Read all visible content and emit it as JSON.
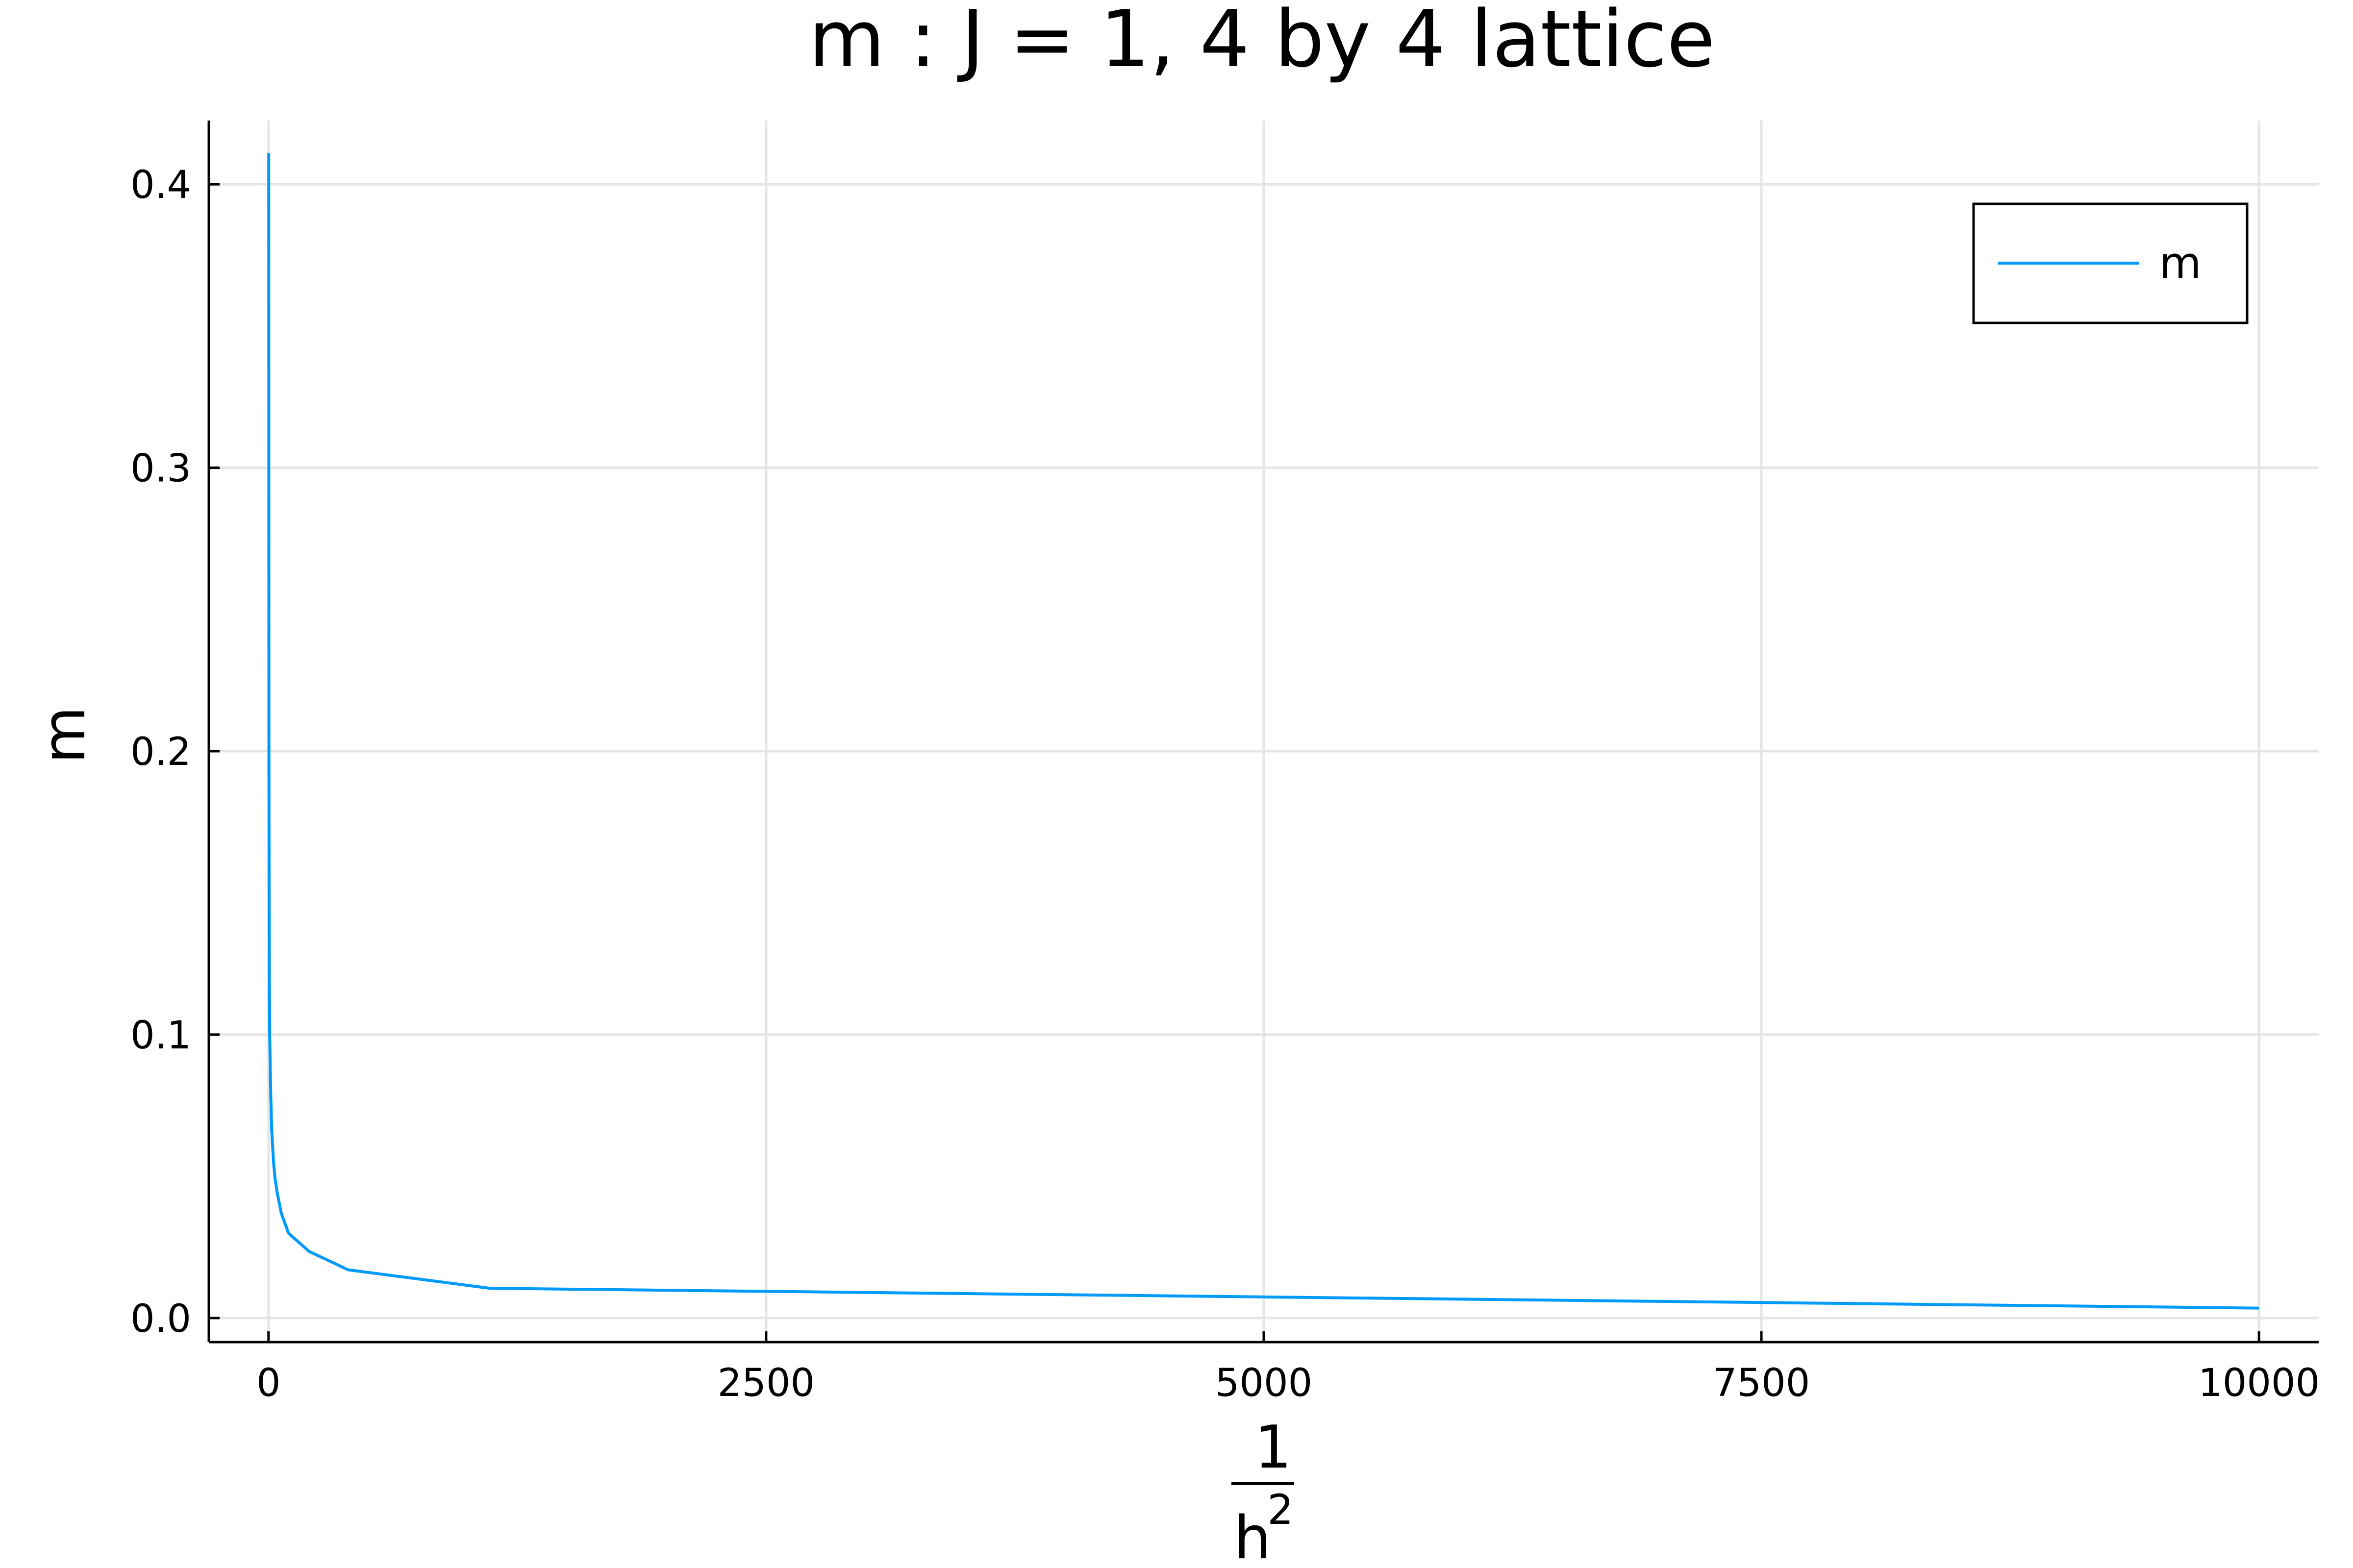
{
  "chart_data": {
    "type": "line",
    "title": "m : J = 1, 4 by 4 lattice",
    "xlabel": {
      "numerator": "1",
      "denominator": "h",
      "exponent": "2"
    },
    "ylabel": "m",
    "xlim": [
      -300,
      10300
    ],
    "ylim": [
      -0.0085,
      0.4225
    ],
    "xticks": [
      0,
      2500,
      5000,
      7500,
      10000
    ],
    "xtick_labels": [
      "0",
      "2500",
      "5000",
      "7500",
      "10000"
    ],
    "yticks": [
      0.0,
      0.1,
      0.2,
      0.3,
      0.4
    ],
    "ytick_labels": [
      "0.0",
      "0.1",
      "0.2",
      "0.3",
      "0.4"
    ],
    "grid": true,
    "legend_position": "top-right",
    "series": [
      {
        "name": "m",
        "color": "#009AFA",
        "x": [
          1,
          1.5,
          2,
          3,
          4,
          6,
          8,
          11,
          16,
          25,
          33,
          44,
          64,
          100,
          123,
          204,
          400,
          1111,
          10000
        ],
        "y": [
          0.411,
          0.3,
          0.2,
          0.15,
          0.12,
          0.1,
          0.09,
          0.079,
          0.066,
          0.055,
          0.049,
          0.044,
          0.037,
          0.03,
          0.0285,
          0.0235,
          0.017,
          0.0105,
          0.0035
        ]
      }
    ]
  }
}
